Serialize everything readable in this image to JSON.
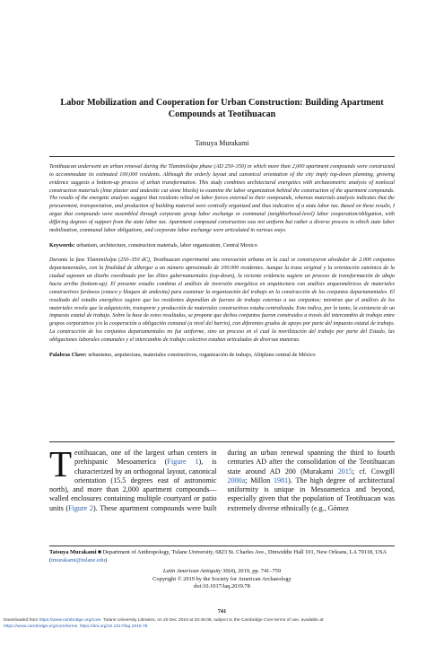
{
  "header": {
    "title": "Labor Mobilization and Cooperation for Urban Construction: Building Apartment Compounds at Teotihuacan",
    "author": "Tatsuya Murakami"
  },
  "abstract": {
    "text": "Teotihuacan underwent an urban renewal during the Tlamimilolpa phase (AD 250–350) in which more than 2,000 apartment compounds were constructed to accommodate its estimated 100,000 residents. Although the orderly layout and canonical orientation of the city imply top-down planning, growing evidence suggests a bottom-up process of urban transformation. This study combines architectural energetics with archaeometric analysis of nonlocal construction materials (lime plaster and andesitic cut stone blocks) to examine the labor organization behind the construction of the apartment compounds. The results of the energetic analysis suggest that residents relied on labor forces external to their compounds, whereas materials analysis indicates that the procurement, transportation, and production of building material were centrally organized and thus indicative of a state labor tax. Based on these results, I argue that compounds were assembled through corporate group labor exchange or communal (neighborhood-level) labor cooperation/obligation, with differing degrees of support from the state labor tax. Apartment compound construction was not uniform but rather a diverse process in which state labor mobilization, communal labor obligations, and corporate labor exchange were articulated in various ways.",
    "keywords_label": "Keywords:",
    "keywords": "urbanism, architecture, construction materials, labor organization, Central Mexico"
  },
  "resumen": {
    "text": "Durante la fase Tlamimilolpa (250–350 dC), Teotihuacan experimentó una renovación urbana en la cual se construyeron alrededor de 2.000 conjuntos departamentales, con la finalidad de albergar a un número aproximado de 100.000 residentes. Aunque la traza original y la orientación canónica de la ciudad suponen un diseño coordinado por las élites gubernamentales (top-down), la reciente evidencia sugiere un proceso de transformación de abajo hacia arriba (bottom-up). El presente estudio combina el análisis de inversión energética en arquitectura con análisis arqueométricos de materiales constructivos foráneos (estuco y bloques de andesita) para examinar la organización del trabajo en la construcción de los conjuntos departamentales. El resultado del estudio energético sugiere que los residentes dependían de fuerzas de trabajo externas a sus conjuntos; mientras que el análisis de los materiales revela que la adquisición, transporte y producción de materiales constructivos estaba centralizada. Esto indica, por lo tanto, la existencia de un impuesto estatal de trabajo. Sobre la base de estos resultados, se propone que dichos conjuntos fueron construidos a través del intercambio de trabajo entre grupos corporativos y/o la cooperación u obligación comunal (a nivel del barrio), con diferentes grados de apoyo por parte del impuesto estatal de trabajo. La construcción de los conjuntos departamentales no fue uniforme, sino un proceso en el cual la movilización del trabajo por parte del Estado, las obligaciones laborales comunales y el intercambio de trabajo colectivo estaban articulados de diversas maneras.",
    "keywords_label": "Palabras Clave:",
    "keywords": "urbanismo, arquitectura, materiales constructivos, organización de trabajo, Altiplano central de México"
  },
  "body": [
    {
      "text": "Teotihuacan, one of the largest urban centers in prehispanic Mesoamerica ("
    },
    {
      "text": "Figure 1",
      "link": true
    },
    {
      "text": "), is characterized by an orthogonal layout, canonical orientation (15.5 degrees east of astronomic north), and more than 2,000 apartment compounds—walled enclosures containing multiple courtyard or patio units ("
    },
    {
      "text": "Figure 2",
      "link": true
    },
    {
      "text": "). These apartment compounds were built during an urban renewal spanning the third to fourth centuries AD after the consolidation of the Teotihuacan state around AD 200 (Murakami "
    },
    {
      "text": "2015",
      "link": true
    },
    {
      "text": "; cf. Cowgill "
    },
    {
      "text": "2000a",
      "link": true
    },
    {
      "text": "; Millon "
    },
    {
      "text": "1981",
      "link": true
    },
    {
      "text": "). The high degree of architectural uniformity is unique in Mesoamerica and beyond, especially given that the population of Teotihuacan was extremely diverse ethnically (e.g., Gómez"
    }
  ],
  "affiliation": [
    {
      "text": "Tatsuya Murakami",
      "bold": true
    },
    {
      "text": " ■ Department of Anthropology, Tulane University, 6823 St. Charles Ave., Dinwiddie Hall 101, New Orleans, LA 70118, USA ("
    },
    {
      "text": "tmurakami@tulane.edu",
      "link": true
    },
    {
      "text": ")"
    }
  ],
  "journal": {
    "citation": [
      {
        "text": "Latin American Antiquity",
        "italic": true
      },
      {
        "text": " 30(4), 2019, pp. 741–759"
      }
    ],
    "copyright": "Copyright © 2019 by the Society for American Archaeology",
    "doi": "doi:10.1017/laq.2019.78"
  },
  "page_number": "741",
  "footer": {
    "line1": [
      {
        "text": "Downloaded from "
      },
      {
        "text": "https://www.cambridge.org/core",
        "link": true
      },
      {
        "text": ". Tulane University Libraries, on 20 Dec 2019 at 03:48:08, subject to the Cambridge Core terms of use, available at"
      }
    ],
    "line2": [
      {
        "text": "https://www.cambridge.org/core/terms",
        "link": true
      },
      {
        "text": ". "
      },
      {
        "text": "https://doi.org/10.1017/laq.2019.78",
        "link": true
      }
    ]
  }
}
